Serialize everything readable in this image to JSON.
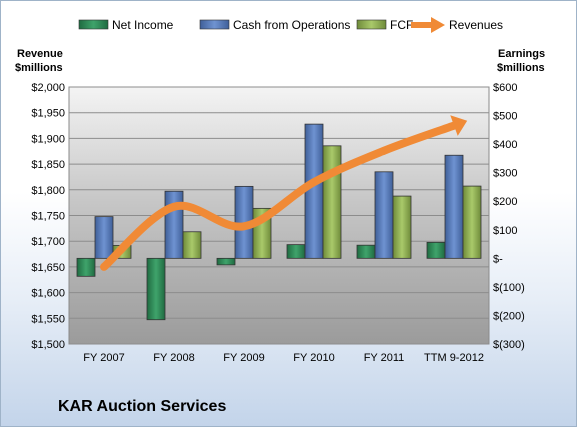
{
  "chart_data": {
    "type": "bar+line",
    "title": "KAR Auction Services",
    "categories": [
      "FY 2007",
      "FY 2008",
      "FY 2009",
      "FY 2010",
      "FY 2011",
      "TTM 9-2012"
    ],
    "series": [
      {
        "name": "Net Income",
        "axis": "right",
        "type": "bar",
        "color": "#2e8b57",
        "values": [
          -63,
          -215,
          -23,
          48,
          46,
          56
        ]
      },
      {
        "name": "Cash from Operations",
        "axis": "right",
        "type": "bar",
        "color": "#5b7fbd",
        "values": [
          146,
          235,
          252,
          470,
          303,
          361
        ]
      },
      {
        "name": "FCF",
        "axis": "right",
        "type": "bar",
        "color": "#9bbb59",
        "values": [
          45,
          93,
          175,
          394,
          218,
          253
        ]
      },
      {
        "name": "Revenues",
        "axis": "left",
        "type": "line",
        "color": "#f08a36",
        "values": [
          1650,
          1767,
          1729,
          1815,
          1876,
          1925
        ]
      }
    ],
    "left_axis": {
      "label_line1": "Revenue",
      "label_line2": "$millions",
      "ylim": [
        1500,
        2000
      ],
      "ticks": [
        {
          "value": 2000,
          "label": "$2,000"
        },
        {
          "value": 1950,
          "label": "$1,950"
        },
        {
          "value": 1900,
          "label": "$1,900"
        },
        {
          "value": 1850,
          "label": "$1,850"
        },
        {
          "value": 1800,
          "label": "$1,800"
        },
        {
          "value": 1750,
          "label": "$1,750"
        },
        {
          "value": 1700,
          "label": "$1,700"
        },
        {
          "value": 1650,
          "label": "$1,650"
        },
        {
          "value": 1600,
          "label": "$1,600"
        },
        {
          "value": 1550,
          "label": "$1,550"
        },
        {
          "value": 1500,
          "label": "$1,500"
        }
      ]
    },
    "right_axis": {
      "label_line1": "Earnings",
      "label_line2": "$millions",
      "ylim": [
        -300,
        600
      ],
      "ticks": [
        {
          "value": 600,
          "label": "$600"
        },
        {
          "value": 500,
          "label": "$500"
        },
        {
          "value": 400,
          "label": "$400"
        },
        {
          "value": 300,
          "label": "$300"
        },
        {
          "value": 200,
          "label": "$200"
        },
        {
          "value": 100,
          "label": "$100"
        },
        {
          "value": 0,
          "label": "$-"
        },
        {
          "value": -100,
          "label": "$(100)"
        },
        {
          "value": -200,
          "label": "$(200)"
        },
        {
          "value": -300,
          "label": "$(300)"
        }
      ]
    },
    "legend_position": "top",
    "grid": true
  }
}
